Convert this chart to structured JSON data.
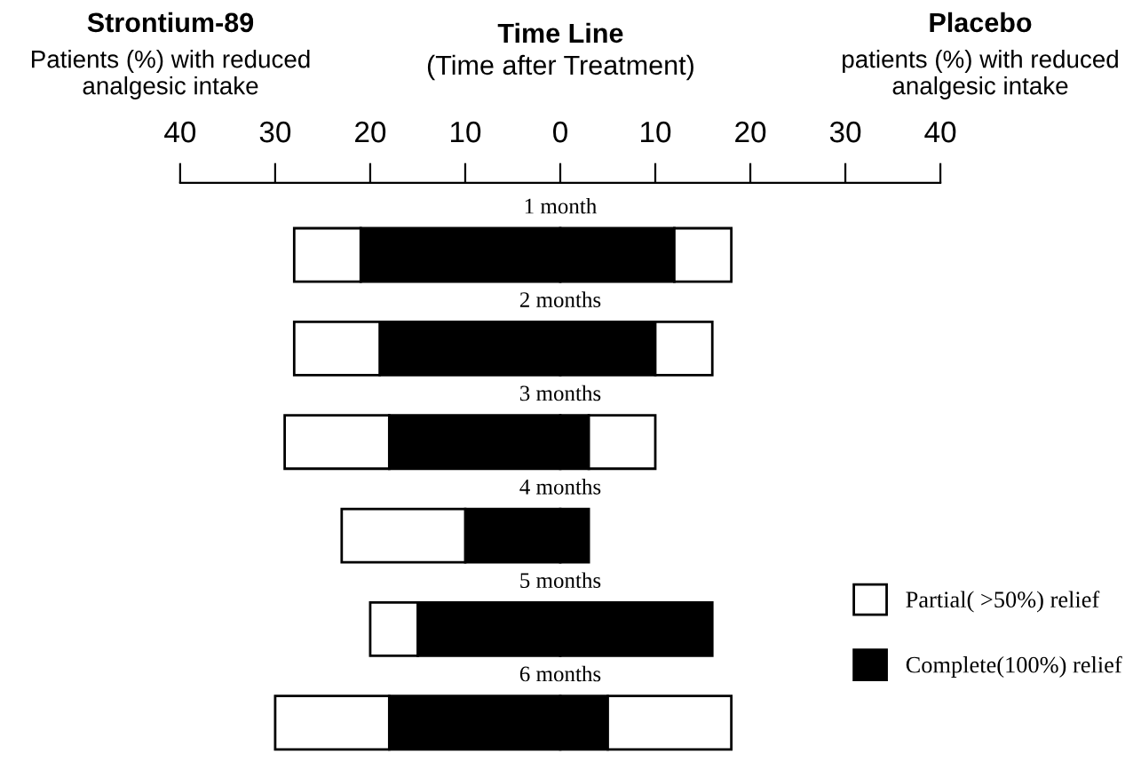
{
  "chart_data": {
    "type": "bar",
    "orientation": "horizontal",
    "stacked": true,
    "title": "Time Line",
    "subtitle": "(Time after Treatment)",
    "annotations": [
      "Strontium-89",
      "Patients (%) with reduced analgesic intake",
      "Placebo",
      "patients (%) with reduced analgesic intake"
    ],
    "categories": [
      "1 month",
      "2 months",
      "3 months",
      "4 months",
      "5 months",
      "6 months"
    ],
    "series": [
      {
        "name": "Complete(100%) relief",
        "color": "#000000",
        "values": [
          -21,
          -19,
          -18,
          -10,
          -15,
          -18
        ]
      },
      {
        "name": "Partial( >50%) relief",
        "color": "#ffffff",
        "values": [
          -7,
          -9,
          -11,
          -13,
          -5,
          -12
        ]
      },
      {
        "color": "#000000",
        "values": [
          12,
          10,
          3,
          3,
          16,
          5
        ]
      },
      {
        "color": "#ffffff",
        "values": [
          6,
          6,
          7,
          0,
          0,
          13
        ]
      }
    ],
    "xlim": [
      -40,
      40
    ],
    "xticks": [
      {
        "value": -40,
        "label": "40"
      },
      {
        "value": -30,
        "label": "30"
      },
      {
        "value": -20,
        "label": "20"
      },
      {
        "value": -10,
        "label": "10"
      },
      0,
      10,
      20,
      30,
      40
    ],
    "legend": "right",
    "grid": false
  }
}
